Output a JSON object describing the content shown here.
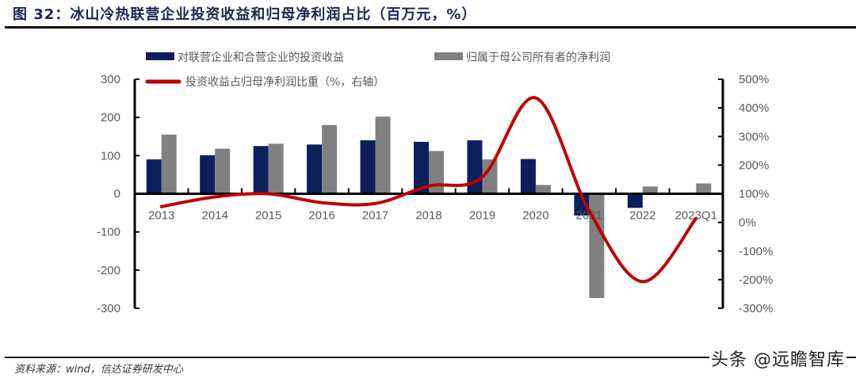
{
  "title": "图 32：冰山冷热联营企业投资收益和归母净利润占比（百万元，%）",
  "source": "资料来源：wind，信达证券研发中心",
  "watermark": "头条 @远瞻智库",
  "chart_data": {
    "type": "bar+line",
    "categories": [
      "2013",
      "2014",
      "2015",
      "2016",
      "2017",
      "2018",
      "2019",
      "2020",
      "2021",
      "2022",
      "2023Q1"
    ],
    "series": [
      {
        "name": "对联营企业和合营企业的投资收益",
        "type": "bar",
        "axis": "left",
        "color": "#0b1f5c",
        "values": [
          90,
          101,
          125,
          129,
          140,
          136,
          140,
          91,
          -57,
          -37,
          2
        ]
      },
      {
        "name": "归属于母公司所有者的净利润",
        "type": "bar",
        "axis": "left",
        "color": "#808080",
        "values": [
          155,
          118,
          131,
          180,
          202,
          112,
          90,
          23,
          -273,
          19,
          27
        ]
      },
      {
        "name": "投资收益占归母净利润比重（%，右轴）",
        "type": "line",
        "axis": "right",
        "color": "#c00000",
        "values": [
          55,
          89,
          100,
          69,
          66,
          127,
          158,
          435,
          40,
          -207,
          14
        ]
      }
    ],
    "y_left": {
      "range": [
        -300,
        300
      ],
      "ticks": [
        "300",
        "200",
        "100",
        "0",
        "-100",
        "-200",
        "-300"
      ]
    },
    "y_right": {
      "range": [
        -300,
        500
      ],
      "ticks": [
        "500%",
        "400%",
        "300%",
        "200%",
        "100%",
        "0%",
        "-100%",
        "-200%",
        "-300%"
      ]
    },
    "grid": false,
    "legend": "top"
  }
}
